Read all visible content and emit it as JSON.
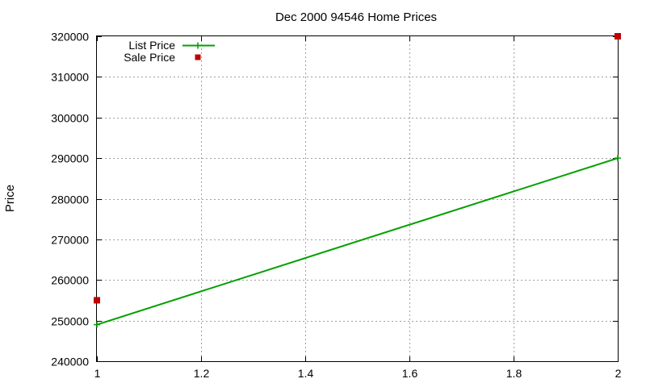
{
  "chart_data": {
    "type": "line",
    "title": "Dec 2000 94546 Home Prices",
    "xlabel": "",
    "ylabel": "Price",
    "xlim": [
      1,
      2
    ],
    "ylim": [
      240000,
      320000
    ],
    "xticks": [
      "1",
      "1.2",
      "1.4",
      "1.6",
      "1.8",
      "2"
    ],
    "yticks": [
      "240000",
      "250000",
      "260000",
      "270000",
      "280000",
      "290000",
      "300000",
      "310000",
      "320000"
    ],
    "grid": true,
    "legend_position": "top-left",
    "series": [
      {
        "name": "List Price",
        "style": "line+cross",
        "color": "#00a000",
        "points": [
          {
            "x": 1,
            "y": 249000
          },
          {
            "x": 2,
            "y": 290000
          }
        ]
      },
      {
        "name": "Sale Price",
        "style": "square",
        "color": "#c00000",
        "points": [
          {
            "x": 1,
            "y": 255000
          },
          {
            "x": 2,
            "y": 320000
          }
        ]
      }
    ]
  }
}
